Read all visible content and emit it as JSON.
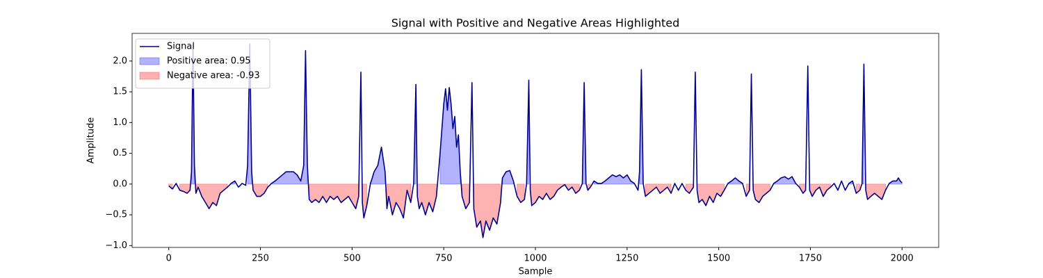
{
  "chart_data": {
    "type": "line",
    "title": "Signal with Positive and Negative Areas Highlighted",
    "x_label": "Sample",
    "y_label": "Amplitude",
    "xlim": [
      -100,
      2100
    ],
    "ylim": [
      -1.03,
      2.45
    ],
    "xticks": [
      0,
      250,
      500,
      750,
      1000,
      1250,
      1500,
      1750,
      2000
    ],
    "yticks": [
      {
        "value": -1,
        "label": "−1.0"
      },
      {
        "value": -0.5,
        "label": "−0.5"
      },
      {
        "value": 0,
        "label": "0.0"
      },
      0.5,
      {
        "value": 1,
        "label": "1.0"
      },
      1.5,
      {
        "value": 2,
        "label": "2.0"
      }
    ],
    "legend": "upper left",
    "series": [
      {
        "name": "Signal",
        "color": "#00008b",
        "x": [
          0,
          10,
          20,
          30,
          40,
          50,
          58,
          62,
          66,
          70,
          74,
          80,
          90,
          100,
          110,
          120,
          130,
          140,
          150,
          160,
          170,
          180,
          190,
          200,
          210,
          215,
          221,
          226,
          230,
          240,
          250,
          260,
          270,
          280,
          290,
          300,
          310,
          320,
          330,
          340,
          350,
          360,
          368,
          373,
          378,
          383,
          390,
          400,
          410,
          420,
          430,
          440,
          450,
          460,
          470,
          480,
          490,
          500,
          510,
          518,
          524,
          528,
          532,
          540,
          550,
          555,
          560,
          570,
          580,
          590,
          595,
          600,
          610,
          620,
          630,
          640,
          650,
          660,
          668,
          674,
          678,
          683,
          690,
          700,
          710,
          720,
          730,
          740,
          750,
          755,
          760,
          765,
          770,
          775,
          780,
          785,
          790,
          795,
          800,
          810,
          820,
          827,
          832,
          840,
          850,
          857,
          865,
          875,
          885,
          895,
          905,
          910,
          920,
          930,
          940,
          950,
          960,
          970,
          976,
          982,
          986,
          990,
          1000,
          1010,
          1020,
          1030,
          1040,
          1050,
          1060,
          1070,
          1080,
          1090,
          1100,
          1110,
          1120,
          1128,
          1133,
          1138,
          1143,
          1150,
          1160,
          1170,
          1180,
          1190,
          1200,
          1210,
          1220,
          1230,
          1240,
          1250,
          1260,
          1270,
          1280,
          1284,
          1289,
          1294,
          1300,
          1310,
          1320,
          1330,
          1340,
          1350,
          1360,
          1370,
          1380,
          1390,
          1400,
          1410,
          1420,
          1431,
          1436,
          1441,
          1446,
          1455,
          1465,
          1475,
          1485,
          1495,
          1505,
          1515,
          1525,
          1535,
          1545,
          1555,
          1565,
          1575,
          1584,
          1589,
          1594,
          1600,
          1610,
          1620,
          1630,
          1640,
          1650,
          1660,
          1670,
          1680,
          1690,
          1700,
          1710,
          1720,
          1730,
          1737,
          1743,
          1748,
          1755,
          1765,
          1775,
          1785,
          1795,
          1805,
          1815,
          1825,
          1835,
          1845,
          1855,
          1865,
          1875,
          1885,
          1891,
          1896,
          1901,
          1906,
          1915,
          1925,
          1935,
          1945,
          1955,
          1965,
          1975,
          1985,
          1990,
          1995,
          2000
        ],
        "values": [
          -0.03,
          -0.08,
          0.01,
          -0.1,
          -0.12,
          -0.15,
          -0.1,
          0.2,
          2.27,
          0.3,
          -0.15,
          -0.05,
          -0.2,
          -0.3,
          -0.4,
          -0.3,
          -0.35,
          -0.15,
          -0.1,
          -0.05,
          0.01,
          0.05,
          -0.05,
          0.01,
          -0.02,
          0.3,
          2.28,
          0.2,
          -0.1,
          -0.2,
          -0.2,
          -0.15,
          -0.05,
          0.01,
          0.05,
          0.1,
          0.15,
          0.2,
          0.2,
          0.2,
          0.15,
          0.05,
          0.3,
          2.17,
          0.3,
          -0.25,
          -0.3,
          -0.25,
          -0.3,
          -0.2,
          -0.3,
          -0.2,
          -0.25,
          -0.2,
          -0.3,
          -0.25,
          -0.2,
          -0.3,
          -0.4,
          -0.2,
          1.82,
          -0.3,
          -0.55,
          -0.35,
          0.01,
          0.1,
          0.2,
          0.3,
          0.6,
          0.2,
          -0.4,
          -0.2,
          -0.5,
          -0.3,
          -0.4,
          -0.55,
          -0.1,
          -0.3,
          0.01,
          1.62,
          -0.2,
          -0.4,
          -0.3,
          -0.5,
          -0.3,
          -0.45,
          -0.2,
          0.5,
          1.3,
          1.55,
          1.2,
          1.57,
          1.3,
          0.9,
          1.1,
          0.6,
          0.8,
          0.2,
          -0.2,
          -0.4,
          -0.3,
          1.65,
          -0.4,
          -0.7,
          -0.6,
          -0.87,
          -0.6,
          -0.75,
          -0.55,
          -0.65,
          -0.3,
          0.1,
          0.2,
          0.22,
          0.05,
          -0.2,
          -0.3,
          -0.25,
          0.01,
          1.69,
          -0.1,
          -0.35,
          -0.3,
          -0.2,
          -0.25,
          -0.15,
          -0.25,
          -0.2,
          -0.1,
          -0.05,
          -0.01,
          -0.1,
          -0.05,
          -0.15,
          -0.1,
          0.01,
          1.65,
          0.01,
          -0.1,
          -0.05,
          0.05,
          0.01,
          0.01,
          0.05,
          0.1,
          0.15,
          0.12,
          0.15,
          0.1,
          0.15,
          0.05,
          0.01,
          -0.1,
          0.2,
          1.86,
          0.01,
          -0.2,
          -0.15,
          -0.1,
          -0.05,
          -0.15,
          -0.1,
          -0.05,
          -0.15,
          0.01,
          -0.1,
          0.01,
          -0.1,
          -0.15,
          -0.05,
          1.82,
          -0.1,
          -0.3,
          -0.25,
          -0.35,
          -0.2,
          -0.3,
          -0.15,
          -0.2,
          -0.1,
          0.01,
          0.05,
          0.1,
          0.05,
          0.01,
          -0.2,
          -0.1,
          1.79,
          -0.1,
          -0.25,
          -0.3,
          -0.2,
          -0.15,
          -0.1,
          0.01,
          0.05,
          0.1,
          0.12,
          0.08,
          0.12,
          0.01,
          -0.05,
          -0.15,
          -0.1,
          1.92,
          -0.1,
          -0.2,
          -0.1,
          -0.05,
          -0.2,
          -0.1,
          -0.05,
          0.01,
          -0.1,
          0.05,
          -0.1,
          0.01,
          0.05,
          -0.15,
          -0.1,
          0.01,
          1.95,
          -0.1,
          -0.25,
          -0.2,
          -0.15,
          -0.2,
          -0.25,
          -0.1,
          0.01,
          0.05,
          0.05,
          0.1,
          0.05,
          0.02
        ]
      }
    ],
    "fills": [
      {
        "name": "Positive area: 0.95",
        "color": "blue",
        "alpha": 0.3,
        "where": "positive"
      },
      {
        "name": "Negative area: -0.93",
        "color": "red",
        "alpha": 0.3,
        "where": "negative"
      }
    ]
  }
}
